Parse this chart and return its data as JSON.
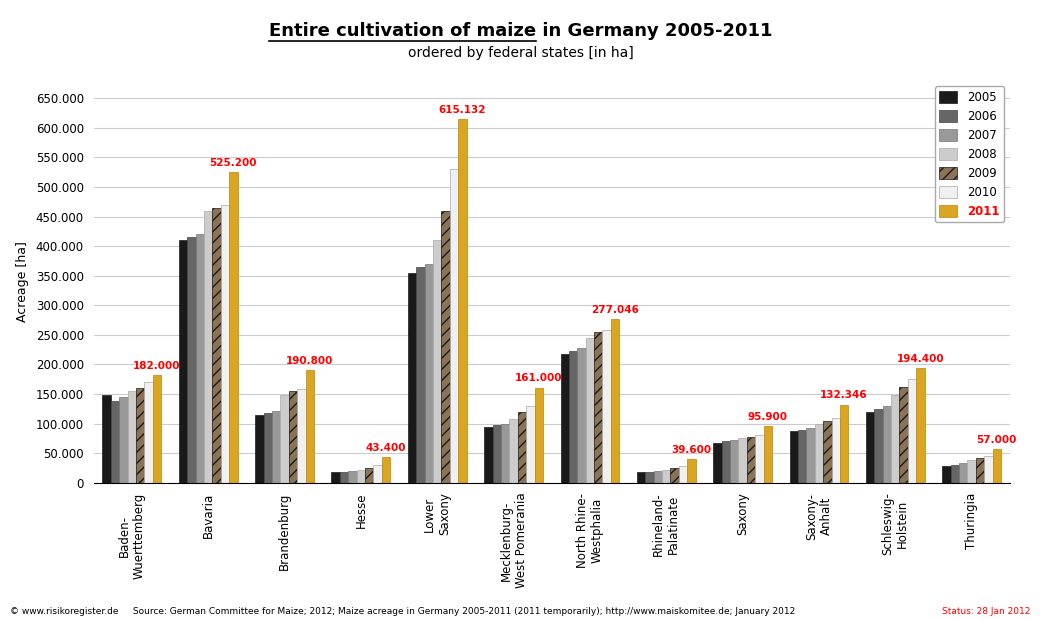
{
  "title_underlined": "Entire cultivation of maize",
  "title_normal": " in Germany 2005-2011",
  "subtitle": "ordered by federal states [in ha]",
  "ylabel": "Acreage [ha]",
  "ylim": [
    0,
    680000
  ],
  "yticks": [
    0,
    50000,
    100000,
    150000,
    200000,
    250000,
    300000,
    350000,
    400000,
    450000,
    500000,
    550000,
    600000,
    650000
  ],
  "categories": [
    "Baden-\nWuerttemberg",
    "Bavaria",
    "Brandenburg",
    "Hesse",
    "Lower\nSaxony",
    "Mecklenburg-\nWest Pomerania",
    "North Rhine-\nWestphalia",
    "Rhineland-\nPalatinate",
    "Saxony",
    "Saxony-\nAnhalt",
    "Schleswig-\nHolstein",
    "Thuringia"
  ],
  "years": [
    "2005",
    "2006",
    "2007",
    "2008",
    "2009",
    "2010",
    "2011"
  ],
  "data": [
    [
      148000,
      138000,
      145000,
      155000,
      160000,
      170000,
      182000
    ],
    [
      410000,
      415000,
      420000,
      460000,
      465000,
      470000,
      525200
    ],
    [
      115000,
      118000,
      122000,
      148000,
      155000,
      158000,
      190800
    ],
    [
      18000,
      19000,
      20000,
      22000,
      25000,
      30000,
      43400
    ],
    [
      355000,
      365000,
      370000,
      410000,
      460000,
      530000,
      615132
    ],
    [
      95000,
      98000,
      100000,
      108000,
      120000,
      130000,
      161000
    ],
    [
      218000,
      222000,
      228000,
      245000,
      255000,
      258000,
      277046
    ],
    [
      18000,
      19000,
      20000,
      22000,
      25000,
      28000,
      39600
    ],
    [
      68000,
      70000,
      72000,
      75000,
      78000,
      80000,
      95900
    ],
    [
      88000,
      90000,
      92000,
      100000,
      105000,
      110000,
      132346
    ],
    [
      120000,
      125000,
      130000,
      148000,
      162000,
      175000,
      194400
    ],
    [
      28000,
      30000,
      33000,
      38000,
      42000,
      46000,
      57000
    ]
  ],
  "bar_colors": [
    "#1a1a1a",
    "#666666",
    "#999999",
    "#cccccc",
    "#8B7355",
    "#f0f0f0",
    "#DAA520"
  ],
  "bar_hatches": [
    "",
    "",
    "",
    "",
    "///",
    "",
    ""
  ],
  "bar_edgecolors": [
    "#1a1a1a",
    "#444444",
    "#777777",
    "#aaaaaa",
    "#1a1a1a",
    "#aaaaaa",
    "#B8860B"
  ],
  "highlight_labels": [
    "182.000",
    "525.200",
    "190.800",
    "43.400",
    "615.132",
    "161.000",
    "277.046",
    "39.600",
    "95.900",
    "132.346",
    "194.400",
    "57.000"
  ],
  "footer": "© www.risikoregister.de     Source: German Committee for Maize; 2012; Maize acreage in Germany 2005-2011 (2011 temporarily); http://www.maiskomitee.de; January 2012",
  "footer_status": "Status: 28 Jan 2012",
  "background_color": "#ffffff",
  "grid_color": "#cccccc"
}
